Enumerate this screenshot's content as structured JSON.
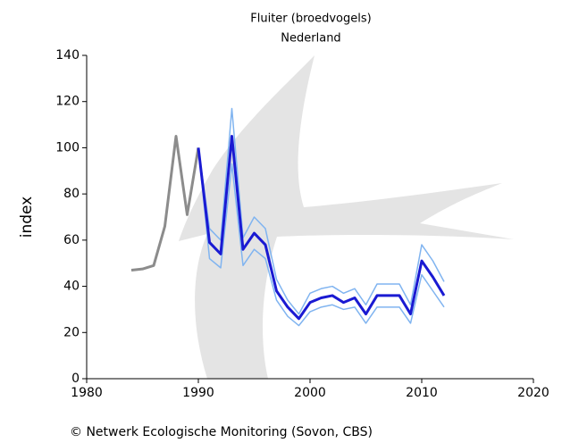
{
  "chart_data": {
    "type": "line",
    "title": "Fluiter (broedvogels)",
    "subtitle": "Nederland",
    "ylabel": "index",
    "footer": "© Netwerk Ecologische Monitoring (Sovon, CBS)",
    "xlim": [
      1980,
      2020
    ],
    "xticks": [
      1980,
      1990,
      2000,
      2010,
      2020
    ],
    "ylim": [
      0,
      140
    ],
    "yticks": [
      0,
      20,
      40,
      60,
      80,
      100,
      120,
      140
    ],
    "series": [
      {
        "color": "#80b4f0",
        "x": [
          1990,
          1991,
          1992,
          1993,
          1994,
          1995,
          1996,
          1997,
          1998,
          1999,
          2000,
          2001,
          2002,
          2003,
          2004,
          2005,
          2006,
          2007,
          2008,
          2009,
          2010,
          2011,
          2012
        ],
        "values": [
          100,
          65,
          60,
          117,
          61,
          70,
          65,
          43,
          34,
          28,
          37,
          39,
          40,
          37,
          39,
          32,
          41,
          41,
          41,
          32,
          58,
          51,
          42
        ]
      },
      {
        "color": "#80b4f0",
        "x": [
          1990,
          1991,
          1992,
          1993,
          1994,
          1995,
          1996,
          1997,
          1998,
          1999,
          2000,
          2001,
          2002,
          2003,
          2004,
          2005,
          2006,
          2007,
          2008,
          2009,
          2010,
          2011,
          2012
        ],
        "values": [
          100,
          52,
          48,
          93,
          49,
          56,
          52,
          34,
          27,
          23,
          29,
          31,
          32,
          30,
          31,
          24,
          31,
          31,
          31,
          24,
          45,
          38,
          31
        ]
      },
      {
        "color": "#8c8c8c",
        "x": [
          1984,
          1985,
          1986,
          1987,
          1988,
          1989,
          1990
        ],
        "values": [
          47,
          47.5,
          49,
          66,
          105,
          71,
          100
        ]
      },
      {
        "color": "#1a1ad2",
        "x": [
          1990,
          1991,
          1992,
          1993,
          1994,
          1995,
          1996,
          1997,
          1998,
          1999,
          2000,
          2001,
          2002,
          2003,
          2004,
          2005,
          2006,
          2007,
          2008,
          2009,
          2010,
          2011,
          2012
        ],
        "values": [
          100,
          59,
          54,
          105,
          56,
          63,
          58,
          38,
          31,
          26,
          33,
          35,
          36,
          33,
          35,
          28,
          36,
          36,
          36,
          28,
          51,
          44,
          36
        ]
      }
    ]
  }
}
